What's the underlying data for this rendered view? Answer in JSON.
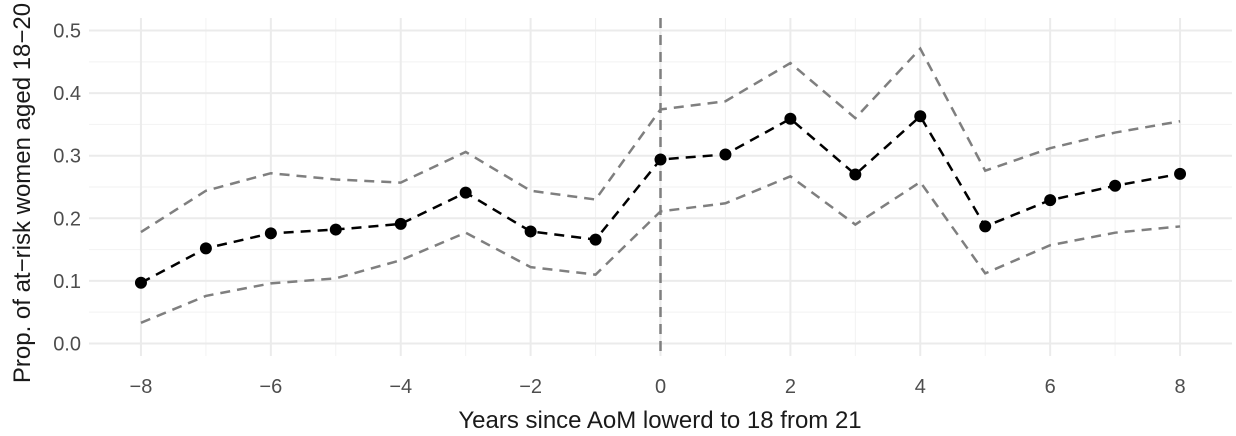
{
  "chart_data": {
    "type": "line",
    "xlabel": "Years since AoM lowerd to 18 from 21",
    "ylabel": "Prop. of at−risk women aged 18−20",
    "xlim": [
      -8.8,
      8.8
    ],
    "ylim": [
      -0.02,
      0.52
    ],
    "x_ticks": [
      -8,
      -6,
      -4,
      -2,
      0,
      2,
      4,
      6,
      8
    ],
    "x_tick_labels": [
      "−8",
      "−6",
      "−4",
      "−2",
      "0",
      "2",
      "4",
      "6",
      "8"
    ],
    "y_ticks": [
      0.0,
      0.1,
      0.2,
      0.3,
      0.4,
      0.5
    ],
    "y_tick_labels": [
      "0.0",
      "0.1",
      "0.2",
      "0.3",
      "0.4",
      "0.5"
    ],
    "grid": true,
    "vline_x": 0,
    "x": [
      -8,
      -7,
      -6,
      -5,
      -4,
      -3,
      -2,
      -1,
      0,
      1,
      2,
      3,
      4,
      5,
      6,
      7,
      8
    ],
    "series": [
      {
        "role": "estimate",
        "color": "#000000",
        "values": [
          0.097,
          0.152,
          0.176,
          0.182,
          0.191,
          0.241,
          0.179,
          0.166,
          0.294,
          0.302,
          0.359,
          0.27,
          0.363,
          0.187,
          0.229,
          0.252,
          0.271
        ]
      },
      {
        "role": "upper",
        "color": "#7f7f7f",
        "values": [
          0.178,
          0.244,
          0.272,
          0.262,
          0.257,
          0.306,
          0.244,
          0.23,
          0.374,
          0.387,
          0.448,
          0.36,
          0.471,
          0.276,
          0.312,
          0.337,
          0.355
        ]
      },
      {
        "role": "lower",
        "color": "#7f7f7f",
        "values": [
          0.033,
          0.076,
          0.096,
          0.104,
          0.133,
          0.177,
          0.122,
          0.11,
          0.211,
          0.224,
          0.267,
          0.19,
          0.258,
          0.112,
          0.157,
          0.177,
          0.187
        ]
      }
    ]
  }
}
